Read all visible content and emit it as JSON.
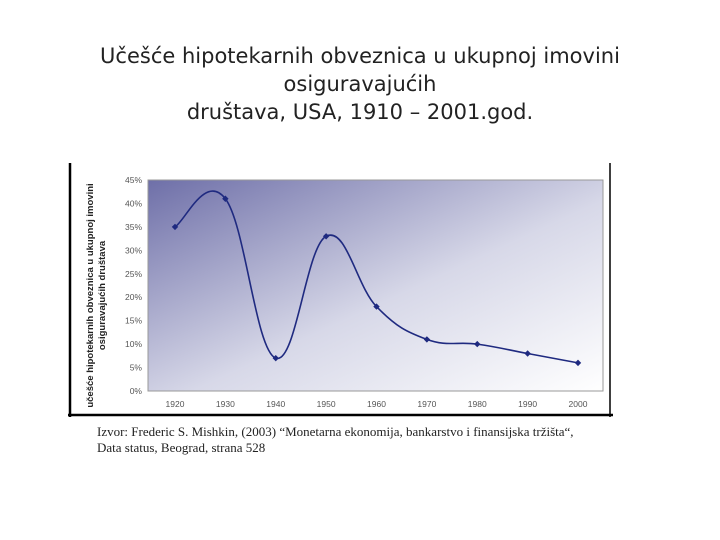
{
  "title_lines": [
    "Učešće hipotekarnih obveznica u ukupnoj imovini osiguravajućih",
    "društava, USA, 1910 – 2001.god."
  ],
  "caption_lines": [
    "Izvor: Frederic S. Mishkin, (2003) “Monetarna ekonomija, bankarstvo i finansijska tržišta“,",
    "Data status, Beograd, strana 528"
  ],
  "chart_data": {
    "type": "line",
    "title": "",
    "xlabel": "",
    "ylabel": "učešće hipotekarnih obveznica u ukupnoj imovini osiguravajućih društava",
    "ylabel_lines": [
      "učešće hipotekarnih obveznica u ukupnoj imovini",
      "osiguravajućih društava"
    ],
    "categories": [
      "1920",
      "1930",
      "1940",
      "1950",
      "1960",
      "1970",
      "1980",
      "1990",
      "2000"
    ],
    "x": [
      1920,
      1930,
      1940,
      1950,
      1960,
      1970,
      1980,
      1990,
      2000
    ],
    "series": [
      {
        "values": [
          35,
          41,
          7,
          33,
          18,
          11,
          10,
          8,
          6
        ]
      }
    ],
    "ylim": [
      0,
      45
    ],
    "yticks": [
      "0%",
      "5%",
      "10%",
      "15%",
      "20%",
      "25%",
      "30%",
      "35%",
      "40%",
      "45%"
    ],
    "grid": false,
    "legend": "none",
    "line_color": "#1f2a80",
    "plot_gradient_start": "#6e6fa8",
    "plot_gradient_end": "#ffffff"
  }
}
